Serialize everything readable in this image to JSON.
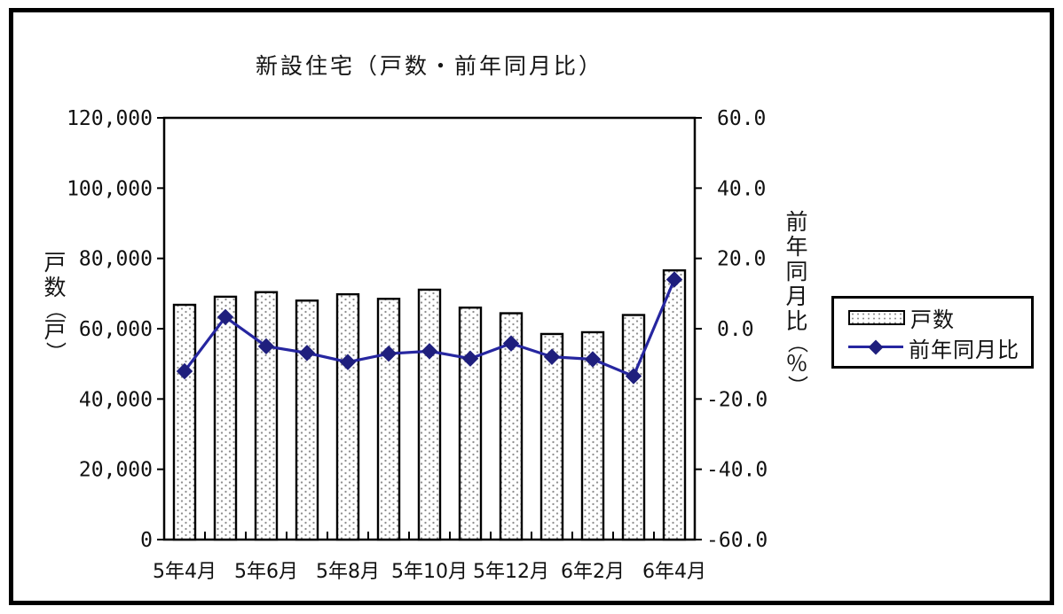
{
  "page": {
    "background": "#ffffff",
    "frame_border_color": "#000000"
  },
  "chart_data": {
    "type": "bar",
    "title": "新設住宅（戸数・前年同月比）",
    "categories": [
      "5年4月",
      "5年5月",
      "5年6月",
      "5年7月",
      "5年8月",
      "5年9月",
      "5年10月",
      "5年11月",
      "5年12月",
      "6年1月",
      "6年2月",
      "6年3月",
      "6年4月"
    ],
    "x_tick_labels": [
      {
        "index": 0,
        "label": "5年4月"
      },
      {
        "index": 2,
        "label": "5年6月"
      },
      {
        "index": 4,
        "label": "5年8月"
      },
      {
        "index": 6,
        "label": "5年10月"
      },
      {
        "index": 8,
        "label": "5年12月"
      },
      {
        "index": 10,
        "label": "6年2月"
      },
      {
        "index": 12,
        "label": "6年4月"
      }
    ],
    "series": [
      {
        "name": "戸数",
        "kind": "bar",
        "axis": "left",
        "values": [
          66800,
          69100,
          70400,
          68000,
          69800,
          68500,
          71100,
          66000,
          64400,
          58500,
          59000,
          63900,
          76600
        ],
        "bar_stroke": "#000000",
        "bar_dot_color": "#8f8f8f"
      },
      {
        "name": "前年同月比",
        "kind": "line",
        "axis": "right",
        "values": [
          -12.1,
          3.3,
          -5.0,
          -6.9,
          -9.5,
          -7.1,
          -6.4,
          -8.5,
          -4.2,
          -8.0,
          -8.7,
          -13.5,
          14.0
        ],
        "line_color": "#2626a0",
        "marker": "diamond",
        "marker_color": "#1f1f7d"
      }
    ],
    "left_axis": {
      "title": "戸数（戸）",
      "min": 0,
      "max": 120000,
      "tick_step": 20000,
      "tick_labels": [
        "120,000",
        "100,000",
        "80,000",
        "60,000",
        "40,000",
        "20,000",
        "0"
      ]
    },
    "right_axis": {
      "title": "前年同月比（％）",
      "min": -60,
      "max": 60,
      "tick_step": 20,
      "tick_labels": [
        "60.0",
        "40.0",
        "20.0",
        "0.0",
        "-20.0",
        "-40.0",
        "-60.0"
      ]
    },
    "legend": {
      "position": "middle-right",
      "items": [
        "戸数",
        "前年同月比"
      ]
    },
    "grid": false
  }
}
